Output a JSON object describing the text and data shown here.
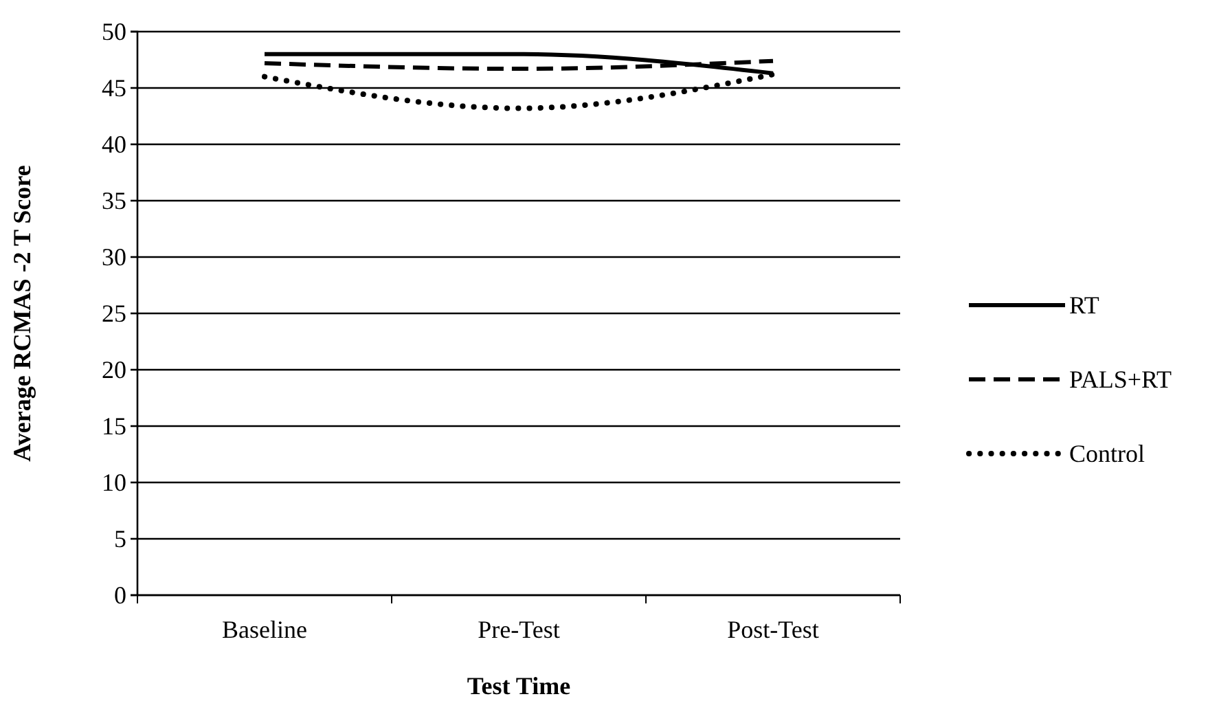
{
  "chart_data": {
    "type": "line",
    "xlabel": "Test Time",
    "ylabel": "Average RCMAS -2 T Score",
    "categories": [
      "Baseline",
      "Pre-Test",
      "Post-Test"
    ],
    "series": [
      {
        "name": "RT",
        "color": "#000000",
        "values": [
          48.0,
          48.0,
          46.3
        ],
        "line_style": "solid"
      },
      {
        "name": "PALS+RT",
        "color": "#000000",
        "values": [
          47.2,
          46.7,
          47.4
        ],
        "line_style": "dashed"
      },
      {
        "name": "Control",
        "color": "#000000",
        "values": [
          46.0,
          43.2,
          46.2
        ],
        "line_style": "dotted"
      }
    ],
    "ylim": [
      0,
      50
    ],
    "yticks": [
      0,
      5,
      10,
      15,
      20,
      25,
      30,
      35,
      40,
      45,
      50
    ],
    "grid": "y",
    "legend": "right",
    "marker": "none"
  }
}
